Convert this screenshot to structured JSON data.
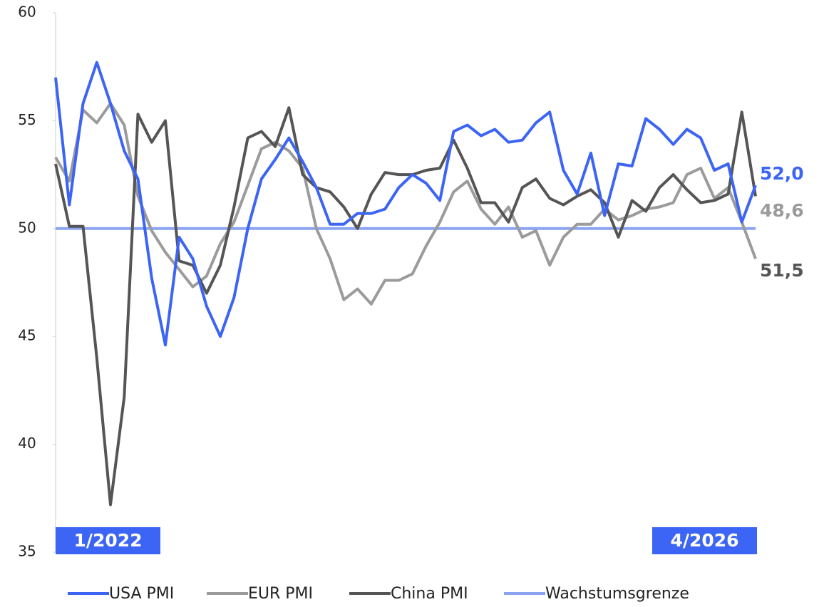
{
  "chart_data": {
    "type": "line",
    "x_labels": [
      "1/2022",
      "4/2026"
    ],
    "x_label_color": "#3c64f5",
    "ylim": [
      35,
      60
    ],
    "yticks": [
      35,
      40,
      45,
      50,
      55,
      60
    ],
    "series": [
      {
        "name": "USA PMI",
        "color": "#3c64f5",
        "last_label": "52,0",
        "values": [
          57.0,
          51.1,
          55.8,
          57.7,
          55.8,
          53.6,
          52.3,
          47.7,
          44.6,
          49.6,
          48.6,
          46.4,
          45.0,
          46.8,
          50.0,
          52.3,
          53.2,
          54.2,
          53.1,
          51.9,
          50.2,
          50.2,
          50.7,
          50.7,
          50.9,
          51.9,
          52.5,
          52.1,
          51.3,
          54.5,
          54.8,
          54.3,
          54.6,
          54.0,
          54.1,
          54.9,
          55.4,
          52.7,
          51.6,
          53.5,
          50.6,
          53.0,
          52.9,
          55.1,
          54.6,
          53.9,
          54.6,
          54.2,
          52.7,
          53.0,
          50.3,
          52.0
        ]
      },
      {
        "name": "EUR PMI",
        "color": "#9b9b9b",
        "last_label": "48,6",
        "values": [
          53.3,
          52.2,
          55.5,
          54.9,
          55.8,
          54.8,
          51.5,
          49.9,
          48.9,
          48.1,
          47.3,
          47.8,
          49.3,
          50.3,
          52.0,
          53.7,
          54.0,
          53.6,
          52.8,
          50.0,
          48.6,
          46.7,
          47.2,
          46.5,
          47.6,
          47.6,
          47.9,
          49.2,
          50.3,
          51.7,
          52.2,
          50.9,
          50.2,
          51.0,
          49.6,
          49.9,
          48.3,
          49.6,
          50.2,
          50.2,
          50.9,
          50.4,
          50.6,
          50.9,
          51.0,
          51.2,
          52.5,
          52.8,
          51.4,
          51.9,
          50.3,
          48.6
        ]
      },
      {
        "name": "China PMI",
        "color": "#555555",
        "last_label": "51,5",
        "values": [
          53.0,
          50.1,
          50.1,
          44.0,
          37.2,
          42.2,
          55.3,
          54.0,
          55.0,
          48.5,
          48.3,
          47.0,
          48.3,
          51.0,
          54.2,
          54.5,
          53.8,
          55.6,
          52.5,
          51.9,
          51.7,
          51.0,
          50.0,
          51.6,
          52.6,
          52.5,
          52.5,
          52.7,
          52.8,
          54.1,
          52.8,
          51.2,
          51.2,
          50.3,
          51.9,
          52.3,
          51.4,
          51.1,
          51.5,
          51.8,
          51.2,
          49.6,
          51.3,
          50.8,
          51.9,
          52.5,
          51.8,
          51.2,
          51.3,
          51.6,
          55.4,
          51.5
        ]
      }
    ],
    "reference_line": {
      "name": "Wachstumsgrenze",
      "value": 50,
      "color": "#8aa4f2"
    }
  }
}
